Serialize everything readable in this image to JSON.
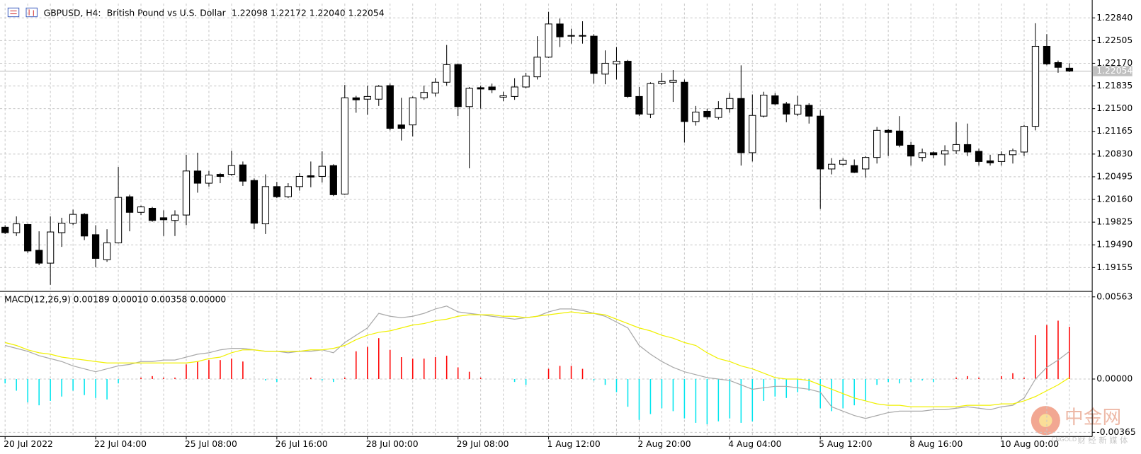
{
  "chart_data": [
    {
      "type": "candlestick",
      "title": "GBPUSD, H4:",
      "subtitle": "British Pound vs U.S. Dollar",
      "header_values": "1.22098 1.22172 1.22040 1.22054",
      "categories": [
        "20 Jul 2022",
        null,
        null,
        null,
        null,
        null,
        null,
        null,
        "22 Jul 04:00",
        null,
        null,
        null,
        null,
        null,
        null,
        null,
        "25 Jul 08:00",
        null,
        null,
        null,
        null,
        null,
        null,
        null,
        "26 Jul 16:00",
        null,
        null,
        null,
        null,
        null,
        null,
        null,
        "28 Jul 00:00",
        null,
        null,
        null,
        null,
        null,
        null,
        null,
        "29 Jul 08:00",
        null,
        null,
        null,
        null,
        null,
        null,
        null,
        "1 Aug 12:00",
        null,
        null,
        null,
        null,
        null,
        null,
        null,
        "2 Aug 20:00",
        null,
        null,
        null,
        null,
        null,
        null,
        null,
        "4 Aug 04:00",
        null,
        null,
        null,
        null,
        null,
        null,
        null,
        "5 Aug 12:00",
        null,
        null,
        null,
        null,
        null,
        null,
        null,
        "8 Aug 16:00",
        null,
        null,
        null,
        null,
        null,
        null,
        null,
        "10 Aug 00:00",
        null,
        null,
        null,
        null,
        null,
        null
      ],
      "open": [
        1.1975,
        1.1967,
        1.1979,
        1.1941,
        1.1922,
        1.1967,
        1.1981,
        1.1994,
        1.1964,
        1.1927,
        1.1952,
        1.202,
        1.1997,
        1.2003,
        1.1989,
        1.1985,
        1.1993,
        1.2058,
        1.204,
        1.2053,
        1.2053,
        1.2067,
        1.2044,
        1.198,
        1.2035,
        1.202,
        1.2035,
        1.2051,
        1.205,
        1.2066,
        1.2024,
        1.2166,
        1.2164,
        1.2164,
        1.2184,
        1.2126,
        1.2126,
        1.2166,
        1.2173,
        1.2189,
        1.2215,
        1.2153,
        1.2181,
        1.2182,
        1.2167,
        1.2168,
        1.2182,
        1.2197,
        1.2226,
        1.2275,
        1.2258,
        1.2257,
        1.2257,
        1.2201,
        1.2216,
        1.222,
        1.2168,
        1.2142,
        1.2187,
        1.2189,
        1.2189,
        1.2131,
        1.2146,
        1.2137,
        1.215,
        1.2165,
        1.2085,
        1.2139,
        1.2169,
        1.2157,
        1.2142,
        1.2155,
        1.2139,
        1.2061,
        1.2068,
        1.2066,
        1.2061,
        1.2078,
        1.2118,
        1.2117,
        1.2096,
        1.2078,
        1.2085,
        1.2083,
        1.2088,
        1.2097,
        1.2087,
        1.2073,
        1.2072,
        1.2082,
        1.2086,
        1.2124,
        1.2242,
        1.2218,
        1.22098
      ],
      "high": [
        1.1978,
        1.1991,
        1.198,
        1.1969,
        1.1991,
        1.1989,
        1.2001,
        1.1996,
        1.1978,
        1.1972,
        1.2064,
        1.2023,
        1.2007,
        1.2005,
        1.2,
        1.2,
        1.2082,
        1.2085,
        1.2058,
        1.2055,
        1.2088,
        1.2072,
        1.2047,
        1.2053,
        1.2042,
        1.204,
        1.2055,
        1.2072,
        1.2087,
        1.2068,
        1.2185,
        1.2169,
        1.2184,
        1.2185,
        1.2187,
        1.2166,
        1.2168,
        1.2184,
        1.2195,
        1.2244,
        1.2217,
        1.2182,
        1.2184,
        1.2187,
        1.2175,
        1.2195,
        1.2203,
        1.2257,
        1.2293,
        1.2283,
        1.2268,
        1.2279,
        1.226,
        1.2236,
        1.2241,
        1.2222,
        1.2182,
        1.2189,
        1.2203,
        1.2207,
        1.2193,
        1.2154,
        1.215,
        1.2161,
        1.2173,
        1.2214,
        1.2171,
        1.2175,
        1.2173,
        1.216,
        1.2169,
        1.2158,
        1.2148,
        1.2077,
        1.2077,
        1.2075,
        1.208,
        1.2123,
        1.212,
        1.2139,
        1.2101,
        1.2091,
        1.2087,
        1.2096,
        1.213,
        1.2128,
        1.2091,
        1.2082,
        1.2087,
        1.2091,
        1.2126,
        1.2276,
        1.226,
        1.2221,
        1.22172
      ],
      "low": [
        1.1965,
        1.1962,
        1.1937,
        1.1919,
        1.189,
        1.1946,
        1.1978,
        1.1956,
        1.1916,
        1.1924,
        1.1951,
        1.1969,
        1.1993,
        1.1983,
        1.1962,
        1.1962,
        1.1978,
        1.2026,
        1.2035,
        1.204,
        1.2051,
        1.2036,
        1.1972,
        1.1965,
        1.2018,
        1.2018,
        1.2029,
        1.2034,
        1.2041,
        1.2021,
        1.2023,
        1.2144,
        1.2141,
        1.2154,
        1.2118,
        1.2103,
        1.2109,
        1.2163,
        1.2168,
        1.2184,
        1.2139,
        1.2062,
        1.215,
        1.2173,
        1.2161,
        1.2163,
        1.218,
        1.2193,
        1.2225,
        1.2241,
        1.2246,
        1.2246,
        1.2187,
        1.2186,
        1.2193,
        1.2166,
        1.2139,
        1.2136,
        1.2185,
        1.216,
        1.21,
        1.2125,
        1.2134,
        1.2134,
        1.2144,
        1.2066,
        1.2072,
        1.2137,
        1.2155,
        1.213,
        1.2139,
        1.2128,
        1.2002,
        1.2053,
        1.2066,
        1.2055,
        1.2048,
        1.2069,
        1.208,
        1.2093,
        1.2066,
        1.2072,
        1.2077,
        1.2066,
        1.2083,
        1.208,
        1.2066,
        1.2066,
        1.2066,
        1.2069,
        1.208,
        1.2118,
        1.2214,
        1.2203,
        1.2204
      ],
      "close": [
        1.1967,
        1.198,
        1.194,
        1.1922,
        1.1968,
        1.1981,
        1.1994,
        1.1962,
        1.1929,
        1.1952,
        1.2019,
        1.1997,
        1.2005,
        1.1985,
        1.1986,
        1.1993,
        1.2058,
        1.204,
        1.2052,
        1.205,
        1.2066,
        1.2043,
        1.1981,
        1.2035,
        1.202,
        1.2035,
        1.205,
        1.2049,
        1.2065,
        1.2023,
        1.2166,
        1.2163,
        1.2168,
        1.2183,
        1.2121,
        1.2121,
        1.2166,
        1.2174,
        1.2189,
        1.2215,
        1.2153,
        1.218,
        1.2179,
        1.2178,
        1.2169,
        1.2182,
        1.2198,
        1.2226,
        1.2275,
        1.2256,
        1.2257,
        1.2258,
        1.2202,
        1.2217,
        1.222,
        1.2168,
        1.2142,
        1.2187,
        1.219,
        1.2192,
        1.2131,
        1.2145,
        1.2138,
        1.215,
        1.2165,
        1.2085,
        1.214,
        1.217,
        1.2157,
        1.2142,
        1.2155,
        1.2139,
        1.2061,
        1.2068,
        1.2074,
        1.2056,
        1.2078,
        1.2118,
        1.2115,
        1.2096,
        1.208,
        1.2085,
        1.2082,
        1.2088,
        1.2097,
        1.2086,
        1.2072,
        1.207,
        1.2082,
        1.2088,
        1.2124,
        1.2242,
        1.2216,
        1.2211,
        1.22054
      ],
      "up_color": "#ffffff",
      "down_color": "#000000",
      "price_line_color": "#c0c0c0",
      "ylim": [
        1.1883,
        1.2305
      ],
      "yticks": [
        {
          "value": 1.2284,
          "label": "1.22840"
        },
        1.22505,
        {
          "value": 1.2217,
          "label": "1.22170"
        },
        1.21835,
        {
          "value": 1.215,
          "label": "1.21500"
        },
        1.21165,
        {
          "value": 1.2083,
          "label": "1.20830"
        },
        1.20495,
        {
          "value": 1.2016,
          "label": "1.20160"
        },
        1.19825,
        {
          "value": 1.1949,
          "label": "1.19490"
        },
        1.19155
      ],
      "grid": true
    },
    {
      "type": "macd",
      "title": "MACD(12,26,9) 0.00189 0.00010 0.00358 0.00000",
      "series": [
        {
          "kind": "histogram",
          "color": "#ff0000",
          "negative_color": "#00e5ee",
          "values": [
            -0.0003,
            -0.0008,
            -0.0016,
            -0.0018,
            -0.0015,
            -0.0012,
            -0.0008,
            -0.0011,
            -0.0013,
            -0.0014,
            -0.0003,
            0.0,
            0.0001,
            0.0002,
            0.0001,
            0.0001,
            0.001,
            0.0012,
            0.0013,
            0.0013,
            0.0014,
            0.0012,
            0.0,
            -0.0001,
            -0.0002,
            0.0,
            0.0,
            0.0001,
            -0.0001,
            -0.0002,
            0.0001,
            0.0019,
            0.0022,
            0.0028,
            0.002,
            0.0015,
            0.0014,
            0.0014,
            0.0015,
            0.0016,
            0.0008,
            0.0005,
            0.0001,
            0.0,
            0.0,
            -0.0002,
            -0.0004,
            0.0,
            0.0007,
            0.0009,
            0.0009,
            0.0007,
            -0.0001,
            -0.0004,
            -0.0009,
            -0.0019,
            -0.0028,
            -0.0024,
            -0.002,
            -0.0022,
            -0.0027,
            -0.003,
            -0.0031,
            -0.0029,
            -0.0027,
            -0.003,
            -0.0029,
            -0.0015,
            -0.0012,
            -0.0013,
            -0.0009,
            -0.0008,
            -0.002,
            -0.0022,
            -0.002,
            -0.0018,
            -0.0015,
            -0.0004,
            -0.0002,
            -0.0003,
            -0.0002,
            -0.0001,
            -0.0002,
            0.0,
            0.0001,
            0.0002,
            0.0001,
            0.0,
            0.0002,
            0.0004,
            0.0001,
            0.003,
            0.0037,
            0.004,
            0.00358
          ]
        },
        {
          "kind": "line",
          "color": "#a9a9a9",
          "values": [
            0.0023,
            0.0021,
            0.0019,
            0.0016,
            0.0014,
            0.0012,
            0.0009,
            0.0007,
            0.0005,
            0.0007,
            0.0009,
            0.001,
            0.0012,
            0.0012,
            0.0013,
            0.0013,
            0.0015,
            0.0017,
            0.0018,
            0.002,
            0.0021,
            0.0021,
            0.002,
            0.0019,
            0.0019,
            0.0018,
            0.0019,
            0.0019,
            0.002,
            0.0018,
            0.0025,
            0.003,
            0.0035,
            0.0045,
            0.0043,
            0.0042,
            0.0043,
            0.0045,
            0.0048,
            0.005,
            0.0046,
            0.0045,
            0.0044,
            0.0043,
            0.0042,
            0.0041,
            0.0042,
            0.0043,
            0.0046,
            0.0048,
            0.0048,
            0.0047,
            0.0045,
            0.0043,
            0.0039,
            0.0035,
            0.0023,
            0.0017,
            0.0012,
            0.0008,
            0.0005,
            0.0003,
            0.0001,
            0.0,
            -0.0001,
            -0.0004,
            -0.0007,
            -0.0006,
            -0.0005,
            -0.0005,
            -0.0006,
            -0.0007,
            -0.0009,
            -0.0019,
            -0.0022,
            -0.0025,
            -0.0027,
            -0.0025,
            -0.0023,
            -0.0022,
            -0.0022,
            -0.0022,
            -0.0021,
            -0.0021,
            -0.002,
            -0.0019,
            -0.002,
            -0.0021,
            -0.0019,
            -0.0018,
            -0.0013,
            0.0,
            0.0008,
            0.0013,
            0.00189
          ]
        },
        {
          "kind": "line",
          "color": "#f0f000",
          "values": [
            0.0025,
            0.0023,
            0.002,
            0.0018,
            0.0017,
            0.0015,
            0.0014,
            0.0013,
            0.0012,
            0.0011,
            0.0011,
            0.0011,
            0.0011,
            0.0011,
            0.0011,
            0.0011,
            0.0011,
            0.0012,
            0.0014,
            0.0015,
            0.0018,
            0.002,
            0.002,
            0.0019,
            0.0019,
            0.0019,
            0.0019,
            0.002,
            0.002,
            0.0021,
            0.0023,
            0.0027,
            0.003,
            0.0032,
            0.0033,
            0.0035,
            0.0037,
            0.0038,
            0.004,
            0.0041,
            0.0043,
            0.0044,
            0.0044,
            0.0044,
            0.0043,
            0.0043,
            0.0042,
            0.0043,
            0.0044,
            0.0045,
            0.0046,
            0.0045,
            0.0045,
            0.0044,
            0.0041,
            0.0038,
            0.0035,
            0.0033,
            0.003,
            0.0028,
            0.0025,
            0.0023,
            0.0018,
            0.0014,
            0.0012,
            0.0009,
            0.0007,
            0.0004,
            0.0001,
            0.0,
            0.0,
            -0.0001,
            -0.0004,
            -0.0007,
            -0.001,
            -0.0013,
            -0.0015,
            -0.0017,
            -0.0018,
            -0.0018,
            -0.0019,
            -0.0019,
            -0.0019,
            -0.0019,
            -0.0019,
            -0.0018,
            -0.0018,
            -0.0018,
            -0.0017,
            -0.0017,
            -0.0015,
            -0.0012,
            -0.0008,
            -0.0004,
            0.0001
          ]
        }
      ],
      "ylim": [
        -0.00384,
        0.00588
      ],
      "yticks": [
        0.00563,
        {
          "value": 0,
          "label": "0.00000"
        },
        -0.00365
      ],
      "grid": true
    }
  ],
  "watermark": {
    "name": "中金网",
    "latin": "CNGOLD",
    "tagline": "财 经 新 媒 体"
  }
}
